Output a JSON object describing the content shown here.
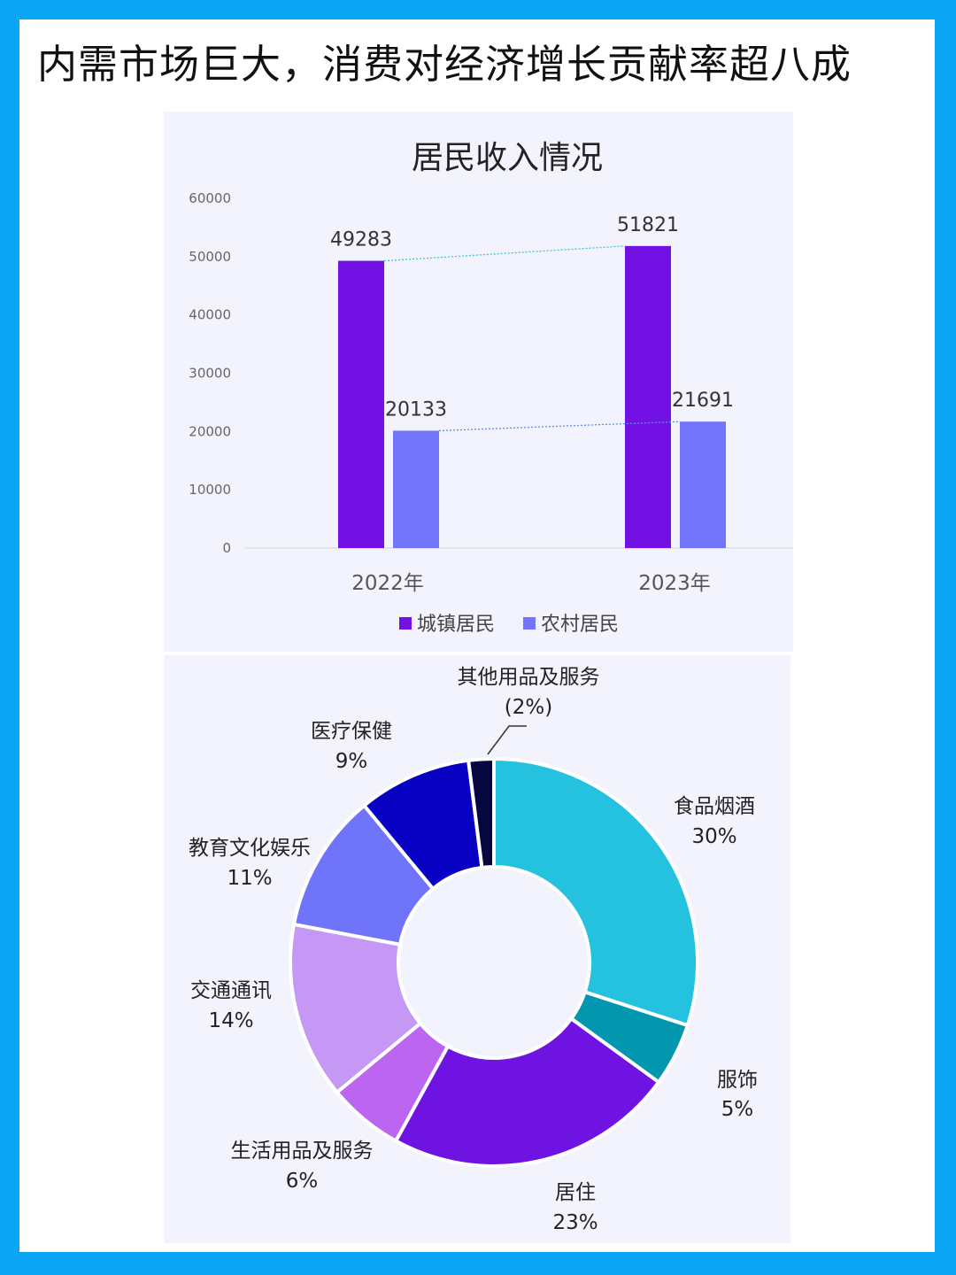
{
  "headline": "内需市场巨大，消费对经济增长贡献率超八成",
  "chart_data": [
    {
      "type": "bar",
      "title": "居民收入情况",
      "categories": [
        "2022年",
        "2023年"
      ],
      "series": [
        {
          "name": "城镇居民",
          "values": [
            49283,
            51821
          ],
          "color": "#7211e4"
        },
        {
          "name": "农村居民",
          "values": [
            20133,
            21691
          ],
          "color": "#7274fb"
        }
      ],
      "data_labels": [
        [
          "49283",
          "51821"
        ],
        [
          "20133",
          "21691"
        ]
      ],
      "ylim": [
        0,
        60000
      ],
      "yticks": [
        "0",
        "10000",
        "20000",
        "30000",
        "40000",
        "50000",
        "60000"
      ],
      "legend": "bottom",
      "grid": false
    },
    {
      "type": "pie",
      "donut": true,
      "slices": [
        {
          "name": "食品烟酒",
          "pct_label": "30%",
          "value": 30,
          "color": "#24c2df"
        },
        {
          "name": "服饰",
          "pct_label": "5%",
          "value": 5,
          "color": "#0297ae"
        },
        {
          "name": "居住",
          "pct_label": "23%",
          "value": 23,
          "color": "#6f13e2"
        },
        {
          "name": "生活用品及服务",
          "pct_label": "6%",
          "value": 6,
          "color": "#bb65f0"
        },
        {
          "name": "交通通讯",
          "pct_label": "14%",
          "value": 14,
          "color": "#c598f6"
        },
        {
          "name": "教育文化娱乐",
          "pct_label": "11%",
          "value": 11,
          "color": "#6f74fb"
        },
        {
          "name": "医疗保健",
          "pct_label": "9%",
          "value": 9,
          "color": "#0800c2"
        },
        {
          "name": "其他用品及服务",
          "pct_label": "(2%)",
          "value": 2,
          "color": "#08063f"
        }
      ]
    }
  ]
}
